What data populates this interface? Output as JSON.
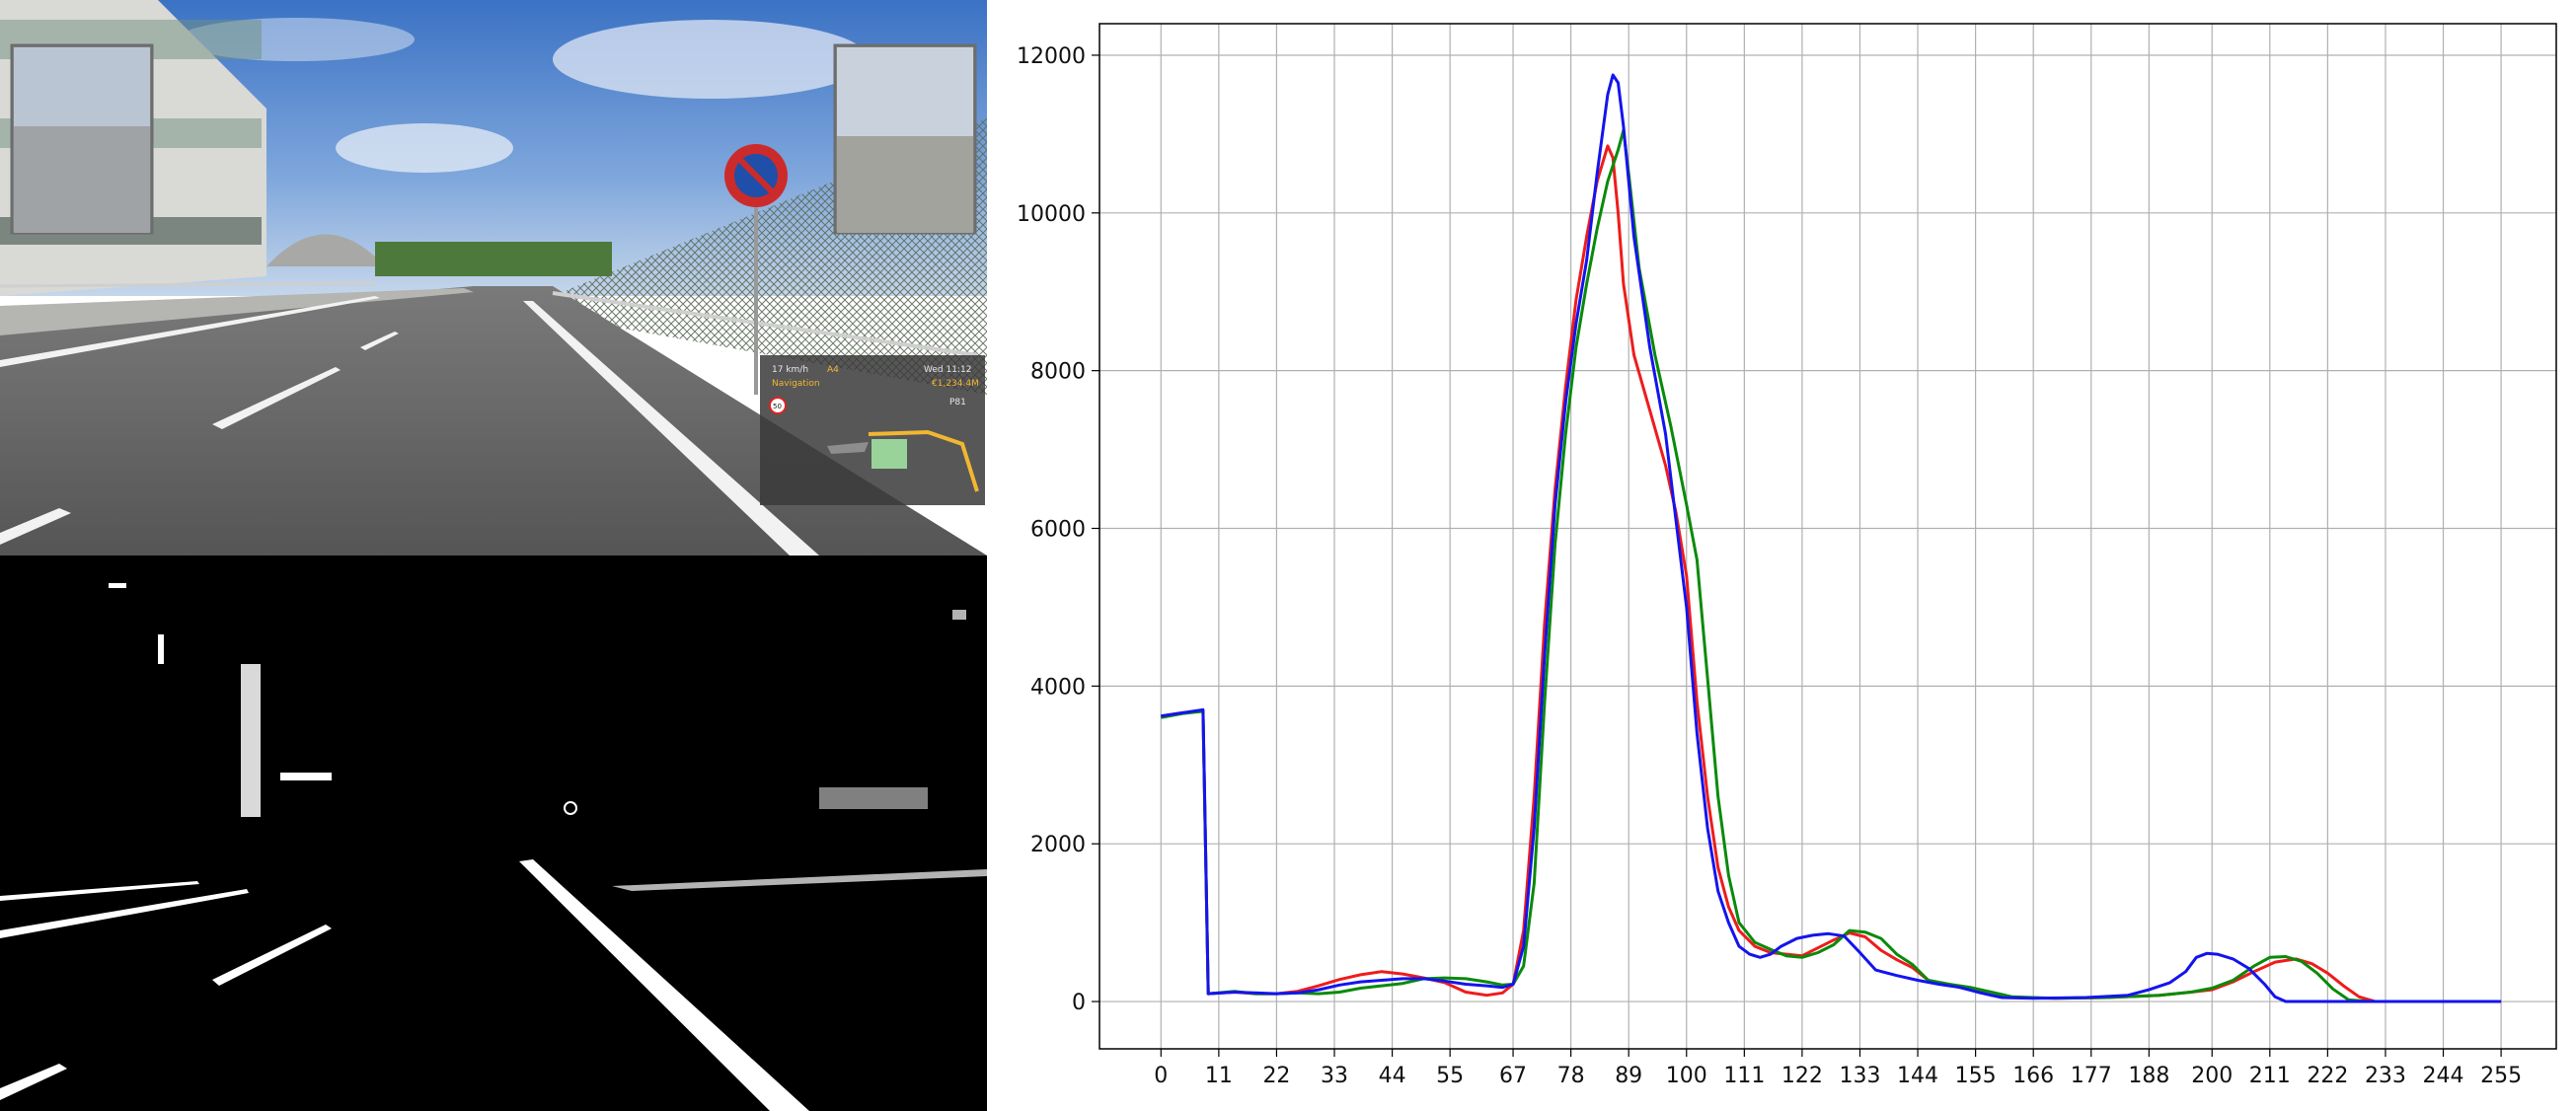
{
  "hud": {
    "speed": "17 km/h",
    "road": "A4",
    "clock": "Wed 11:12",
    "nav_label": "Navigation",
    "money": "€1,234.4M",
    "speed_limit": "50",
    "fuel": "P81"
  },
  "colors": {
    "red": "#ee1c1c",
    "green": "#0a8a0a",
    "blue": "#1414ee",
    "grid": "#b0b0b0"
  },
  "chart_data": {
    "type": "line",
    "title": "",
    "xlabel": "",
    "ylabel": "",
    "xlim": [
      -11.7,
      265.5
    ],
    "ylim": [
      -600,
      12400
    ],
    "grid": true,
    "x_ticks": [
      0,
      11,
      22,
      33,
      44,
      55,
      67,
      78,
      89,
      100,
      111,
      122,
      133,
      144,
      155,
      166,
      177,
      188,
      200,
      211,
      222,
      233,
      244,
      255
    ],
    "y_ticks": [
      0,
      2000,
      4000,
      6000,
      8000,
      10000,
      12000
    ],
    "series": [
      {
        "name": "red",
        "color": "#ee1c1c",
        "points": [
          [
            0,
            3620
          ],
          [
            4,
            3660
          ],
          [
            8,
            3680
          ],
          [
            9,
            100
          ],
          [
            14,
            120
          ],
          [
            18,
            100
          ],
          [
            22,
            100
          ],
          [
            26,
            130
          ],
          [
            30,
            200
          ],
          [
            34,
            280
          ],
          [
            38,
            340
          ],
          [
            42,
            380
          ],
          [
            46,
            350
          ],
          [
            50,
            300
          ],
          [
            54,
            240
          ],
          [
            58,
            120
          ],
          [
            62,
            80
          ],
          [
            65,
            110
          ],
          [
            67,
            220
          ],
          [
            69,
            900
          ],
          [
            71,
            2600
          ],
          [
            73,
            4800
          ],
          [
            75,
            6500
          ],
          [
            77,
            7800
          ],
          [
            79,
            8900
          ],
          [
            81,
            9700
          ],
          [
            83,
            10400
          ],
          [
            85,
            10850
          ],
          [
            86,
            10700
          ],
          [
            87,
            10000
          ],
          [
            88,
            9100
          ],
          [
            90,
            8200
          ],
          [
            93,
            7500
          ],
          [
            96,
            6800
          ],
          [
            98,
            6200
          ],
          [
            100,
            5400
          ],
          [
            102,
            3800
          ],
          [
            104,
            2600
          ],
          [
            106,
            1700
          ],
          [
            108,
            1200
          ],
          [
            110,
            900
          ],
          [
            113,
            700
          ],
          [
            116,
            620
          ],
          [
            119,
            600
          ],
          [
            122,
            580
          ],
          [
            125,
            680
          ],
          [
            128,
            780
          ],
          [
            131,
            870
          ],
          [
            134,
            820
          ],
          [
            137,
            650
          ],
          [
            140,
            530
          ],
          [
            143,
            430
          ],
          [
            146,
            270
          ],
          [
            150,
            210
          ],
          [
            154,
            150
          ],
          [
            158,
            80
          ],
          [
            162,
            50
          ],
          [
            170,
            40
          ],
          [
            180,
            50
          ],
          [
            190,
            80
          ],
          [
            196,
            120
          ],
          [
            200,
            150
          ],
          [
            204,
            250
          ],
          [
            208,
            380
          ],
          [
            212,
            500
          ],
          [
            216,
            540
          ],
          [
            219,
            480
          ],
          [
            222,
            360
          ],
          [
            225,
            200
          ],
          [
            228,
            60
          ],
          [
            231,
            0
          ],
          [
            240,
            0
          ],
          [
            255,
            0
          ]
        ]
      },
      {
        "name": "green",
        "color": "#0a8a0a",
        "points": [
          [
            0,
            3600
          ],
          [
            4,
            3650
          ],
          [
            8,
            3680
          ],
          [
            9,
            100
          ],
          [
            14,
            130
          ],
          [
            18,
            100
          ],
          [
            22,
            100
          ],
          [
            26,
            110
          ],
          [
            30,
            100
          ],
          [
            34,
            120
          ],
          [
            38,
            170
          ],
          [
            42,
            200
          ],
          [
            46,
            230
          ],
          [
            50,
            290
          ],
          [
            54,
            300
          ],
          [
            58,
            290
          ],
          [
            62,
            250
          ],
          [
            65,
            210
          ],
          [
            67,
            220
          ],
          [
            69,
            450
          ],
          [
            71,
            1500
          ],
          [
            73,
            3800
          ],
          [
            75,
            5800
          ],
          [
            77,
            7200
          ],
          [
            79,
            8300
          ],
          [
            81,
            9100
          ],
          [
            83,
            9800
          ],
          [
            85,
            10400
          ],
          [
            87,
            10800
          ],
          [
            88,
            11050
          ],
          [
            89,
            10500
          ],
          [
            91,
            9300
          ],
          [
            94,
            8200
          ],
          [
            97,
            7300
          ],
          [
            100,
            6300
          ],
          [
            102,
            5600
          ],
          [
            104,
            4100
          ],
          [
            106,
            2600
          ],
          [
            108,
            1600
          ],
          [
            110,
            1000
          ],
          [
            113,
            750
          ],
          [
            116,
            660
          ],
          [
            119,
            580
          ],
          [
            122,
            560
          ],
          [
            125,
            620
          ],
          [
            128,
            720
          ],
          [
            131,
            900
          ],
          [
            134,
            880
          ],
          [
            137,
            800
          ],
          [
            140,
            600
          ],
          [
            143,
            470
          ],
          [
            146,
            270
          ],
          [
            150,
            220
          ],
          [
            154,
            180
          ],
          [
            158,
            120
          ],
          [
            162,
            60
          ],
          [
            170,
            40
          ],
          [
            180,
            50
          ],
          [
            190,
            80
          ],
          [
            196,
            120
          ],
          [
            200,
            170
          ],
          [
            204,
            270
          ],
          [
            208,
            450
          ],
          [
            211,
            560
          ],
          [
            214,
            570
          ],
          [
            217,
            510
          ],
          [
            220,
            360
          ],
          [
            223,
            160
          ],
          [
            226,
            20
          ],
          [
            230,
            0
          ],
          [
            240,
            0
          ],
          [
            255,
            0
          ]
        ]
      },
      {
        "name": "blue",
        "color": "#1414ee",
        "points": [
          [
            0,
            3620
          ],
          [
            4,
            3660
          ],
          [
            8,
            3700
          ],
          [
            9,
            100
          ],
          [
            14,
            120
          ],
          [
            18,
            110
          ],
          [
            22,
            100
          ],
          [
            26,
            110
          ],
          [
            30,
            150
          ],
          [
            34,
            210
          ],
          [
            38,
            250
          ],
          [
            42,
            270
          ],
          [
            46,
            290
          ],
          [
            50,
            290
          ],
          [
            54,
            260
          ],
          [
            58,
            220
          ],
          [
            62,
            200
          ],
          [
            65,
            180
          ],
          [
            67,
            220
          ],
          [
            69,
            700
          ],
          [
            71,
            2200
          ],
          [
            73,
            4400
          ],
          [
            75,
            6300
          ],
          [
            77,
            7600
          ],
          [
            79,
            8600
          ],
          [
            81,
            9400
          ],
          [
            83,
            10500
          ],
          [
            85,
            11500
          ],
          [
            86,
            11750
          ],
          [
            87,
            11650
          ],
          [
            88,
            11100
          ],
          [
            90,
            9700
          ],
          [
            93,
            8300
          ],
          [
            96,
            7200
          ],
          [
            98,
            6100
          ],
          [
            100,
            5000
          ],
          [
            102,
            3400
          ],
          [
            104,
            2200
          ],
          [
            106,
            1400
          ],
          [
            108,
            1000
          ],
          [
            110,
            700
          ],
          [
            112,
            600
          ],
          [
            114,
            560
          ],
          [
            116,
            600
          ],
          [
            118,
            700
          ],
          [
            121,
            800
          ],
          [
            124,
            840
          ],
          [
            127,
            860
          ],
          [
            130,
            830
          ],
          [
            133,
            620
          ],
          [
            136,
            400
          ],
          [
            140,
            330
          ],
          [
            144,
            270
          ],
          [
            148,
            220
          ],
          [
            152,
            180
          ],
          [
            156,
            110
          ],
          [
            160,
            50
          ],
          [
            166,
            40
          ],
          [
            176,
            50
          ],
          [
            184,
            80
          ],
          [
            188,
            150
          ],
          [
            192,
            240
          ],
          [
            195,
            380
          ],
          [
            197,
            560
          ],
          [
            199,
            610
          ],
          [
            201,
            600
          ],
          [
            204,
            540
          ],
          [
            207,
            420
          ],
          [
            210,
            220
          ],
          [
            212,
            60
          ],
          [
            214,
            0
          ],
          [
            225,
            0
          ],
          [
            240,
            0
          ],
          [
            255,
            0
          ]
        ]
      }
    ]
  }
}
